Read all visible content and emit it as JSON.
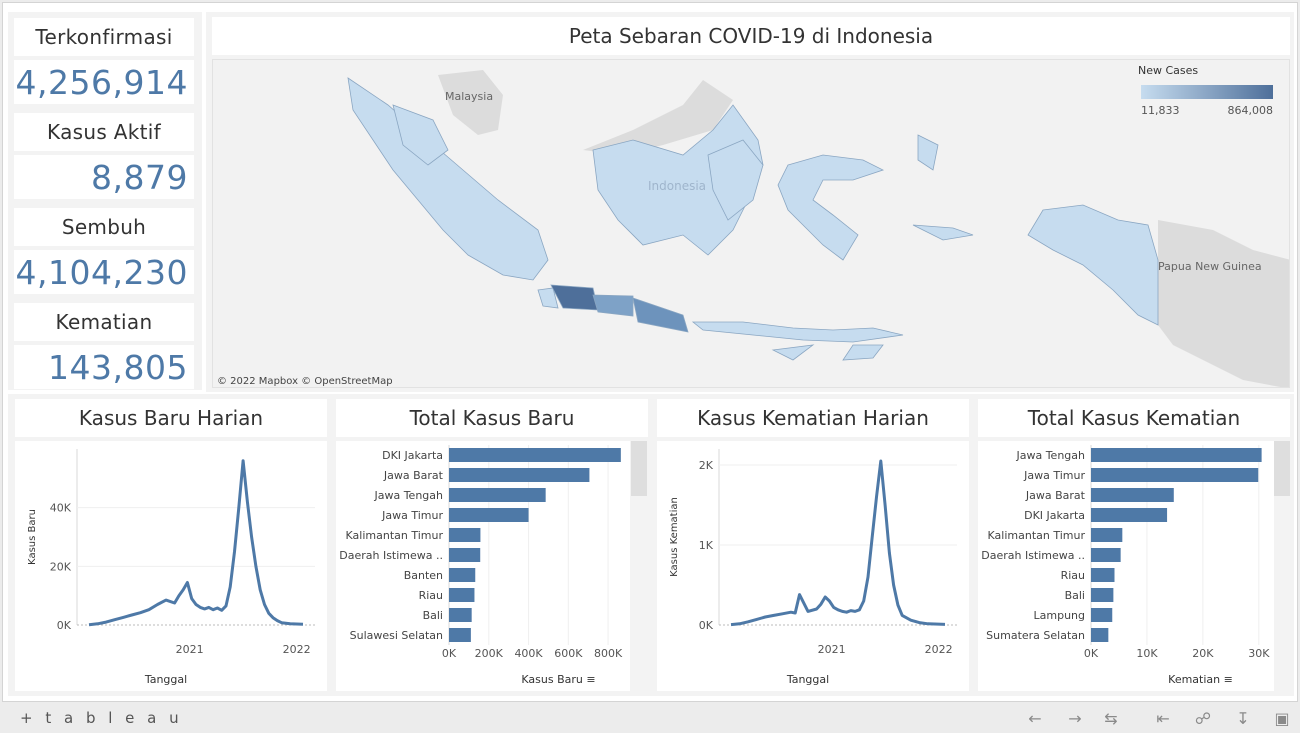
{
  "kpis": [
    {
      "label": "Terkonfirmasi",
      "value": "4,256,914"
    },
    {
      "label": "Kasus Aktif",
      "value": "8,879"
    },
    {
      "label": "Sembuh",
      "value": "4,104,230"
    },
    {
      "label": "Kematian",
      "value": "143,805"
    }
  ],
  "map": {
    "title": "Peta Sebaran COVID-19 di Indonesia",
    "legend_title": "New Cases",
    "legend_min": "11,833",
    "legend_max": "864,008",
    "labels": {
      "malaysia": "Malaysia",
      "indonesia": "Indonesia",
      "png": "Papua New Guinea"
    },
    "attribution": "© 2022 Mapbox  © OpenStreetMap",
    "colors": {
      "low": "#c6dcef",
      "high": "#4e6f9a"
    }
  },
  "panels": {
    "daily_cases_title": "Kasus Baru Harian",
    "total_cases_title": "Total Kasus Baru",
    "daily_deaths_title": "Kasus Kematian Harian",
    "total_deaths_title": "Total Kasus Kematian"
  },
  "chart_data": [
    {
      "type": "line",
      "title": "Kasus Baru Harian",
      "xlabel": "Tanggal",
      "ylabel": "Kasus Baru",
      "x_ticks": [
        "2021",
        "2022"
      ],
      "y_ticks": [
        "0K",
        "20K",
        "40K"
      ],
      "ylim": [
        0,
        60000
      ],
      "color": "#4e79a7",
      "series": [
        {
          "name": "Kasus Baru",
          "x": [
            0,
            0.04,
            0.08,
            0.12,
            0.16,
            0.2,
            0.24,
            0.28,
            0.32,
            0.36,
            0.4,
            0.42,
            0.44,
            0.46,
            0.48,
            0.5,
            0.52,
            0.54,
            0.56,
            0.58,
            0.6,
            0.62,
            0.64,
            0.66,
            0.68,
            0.7,
            0.72,
            0.74,
            0.76,
            0.78,
            0.8,
            0.82,
            0.84,
            0.86,
            0.88,
            0.9,
            0.94,
            1.0
          ],
          "y": [
            100,
            400,
            1000,
            1800,
            2600,
            3400,
            4200,
            5200,
            7000,
            8500,
            7500,
            10000,
            12000,
            14500,
            9000,
            7000,
            6000,
            5500,
            6000,
            5200,
            5800,
            5000,
            6500,
            13000,
            25000,
            40000,
            56000,
            42000,
            30000,
            20000,
            12000,
            7000,
            4000,
            2500,
            1500,
            800,
            400,
            250
          ]
        }
      ]
    },
    {
      "type": "bar",
      "title": "Total Kasus Baru",
      "xlabel": "Kasus Baru",
      "x_ticks": [
        "0K",
        "200K",
        "400K",
        "600K",
        "800K"
      ],
      "xlim": [
        0,
        900000
      ],
      "color": "#4e79a7",
      "categories": [
        "DKI Jakarta",
        "Jawa Barat",
        "Jawa Tengah",
        "Jawa Timur",
        "Kalimantan Timur",
        "Daerah Istimewa ..",
        "Banten",
        "Riau",
        "Bali",
        "Sulawesi Selatan"
      ],
      "values": [
        864008,
        706000,
        486000,
        400000,
        158000,
        157000,
        132000,
        128000,
        114000,
        110000
      ]
    },
    {
      "type": "line",
      "title": "Kasus Kematian Harian",
      "xlabel": "Tanggal",
      "ylabel": "Kasus Kematian",
      "x_ticks": [
        "2021",
        "2022"
      ],
      "y_ticks": [
        "0K",
        "1K",
        "2K"
      ],
      "ylim": [
        0,
        2200
      ],
      "color": "#4e79a7",
      "series": [
        {
          "name": "Kematian",
          "x": [
            0,
            0.04,
            0.08,
            0.12,
            0.16,
            0.2,
            0.24,
            0.28,
            0.3,
            0.32,
            0.36,
            0.4,
            0.42,
            0.44,
            0.46,
            0.48,
            0.5,
            0.52,
            0.54,
            0.56,
            0.58,
            0.6,
            0.62,
            0.64,
            0.66,
            0.68,
            0.7,
            0.72,
            0.74,
            0.76,
            0.78,
            0.8,
            0.84,
            0.88,
            0.92,
            1.0
          ],
          "y": [
            5,
            15,
            40,
            70,
            100,
            120,
            140,
            160,
            150,
            380,
            170,
            200,
            260,
            350,
            300,
            220,
            190,
            170,
            160,
            180,
            170,
            190,
            300,
            600,
            1100,
            1600,
            2050,
            1500,
            900,
            500,
            250,
            120,
            60,
            30,
            15,
            8
          ]
        }
      ]
    },
    {
      "type": "bar",
      "title": "Total Kasus Kematian",
      "xlabel": "Kematian",
      "x_ticks": [
        "0K",
        "10K",
        "20K",
        "30K"
      ],
      "xlim": [
        0,
        32000
      ],
      "color": "#4e79a7",
      "categories": [
        "Jawa Tengah",
        "Jawa Timur",
        "Jawa Barat",
        "DKI Jakarta",
        "Kalimantan Timur",
        "Daerah Istimewa ..",
        "Riau",
        "Bali",
        "Lampung",
        "Sumatera Selatan"
      ],
      "values": [
        30500,
        29900,
        14800,
        13600,
        5600,
        5300,
        4200,
        4000,
        3800,
        3100
      ]
    }
  ],
  "toolbar": {
    "logo": "+ t a b l e a u"
  }
}
